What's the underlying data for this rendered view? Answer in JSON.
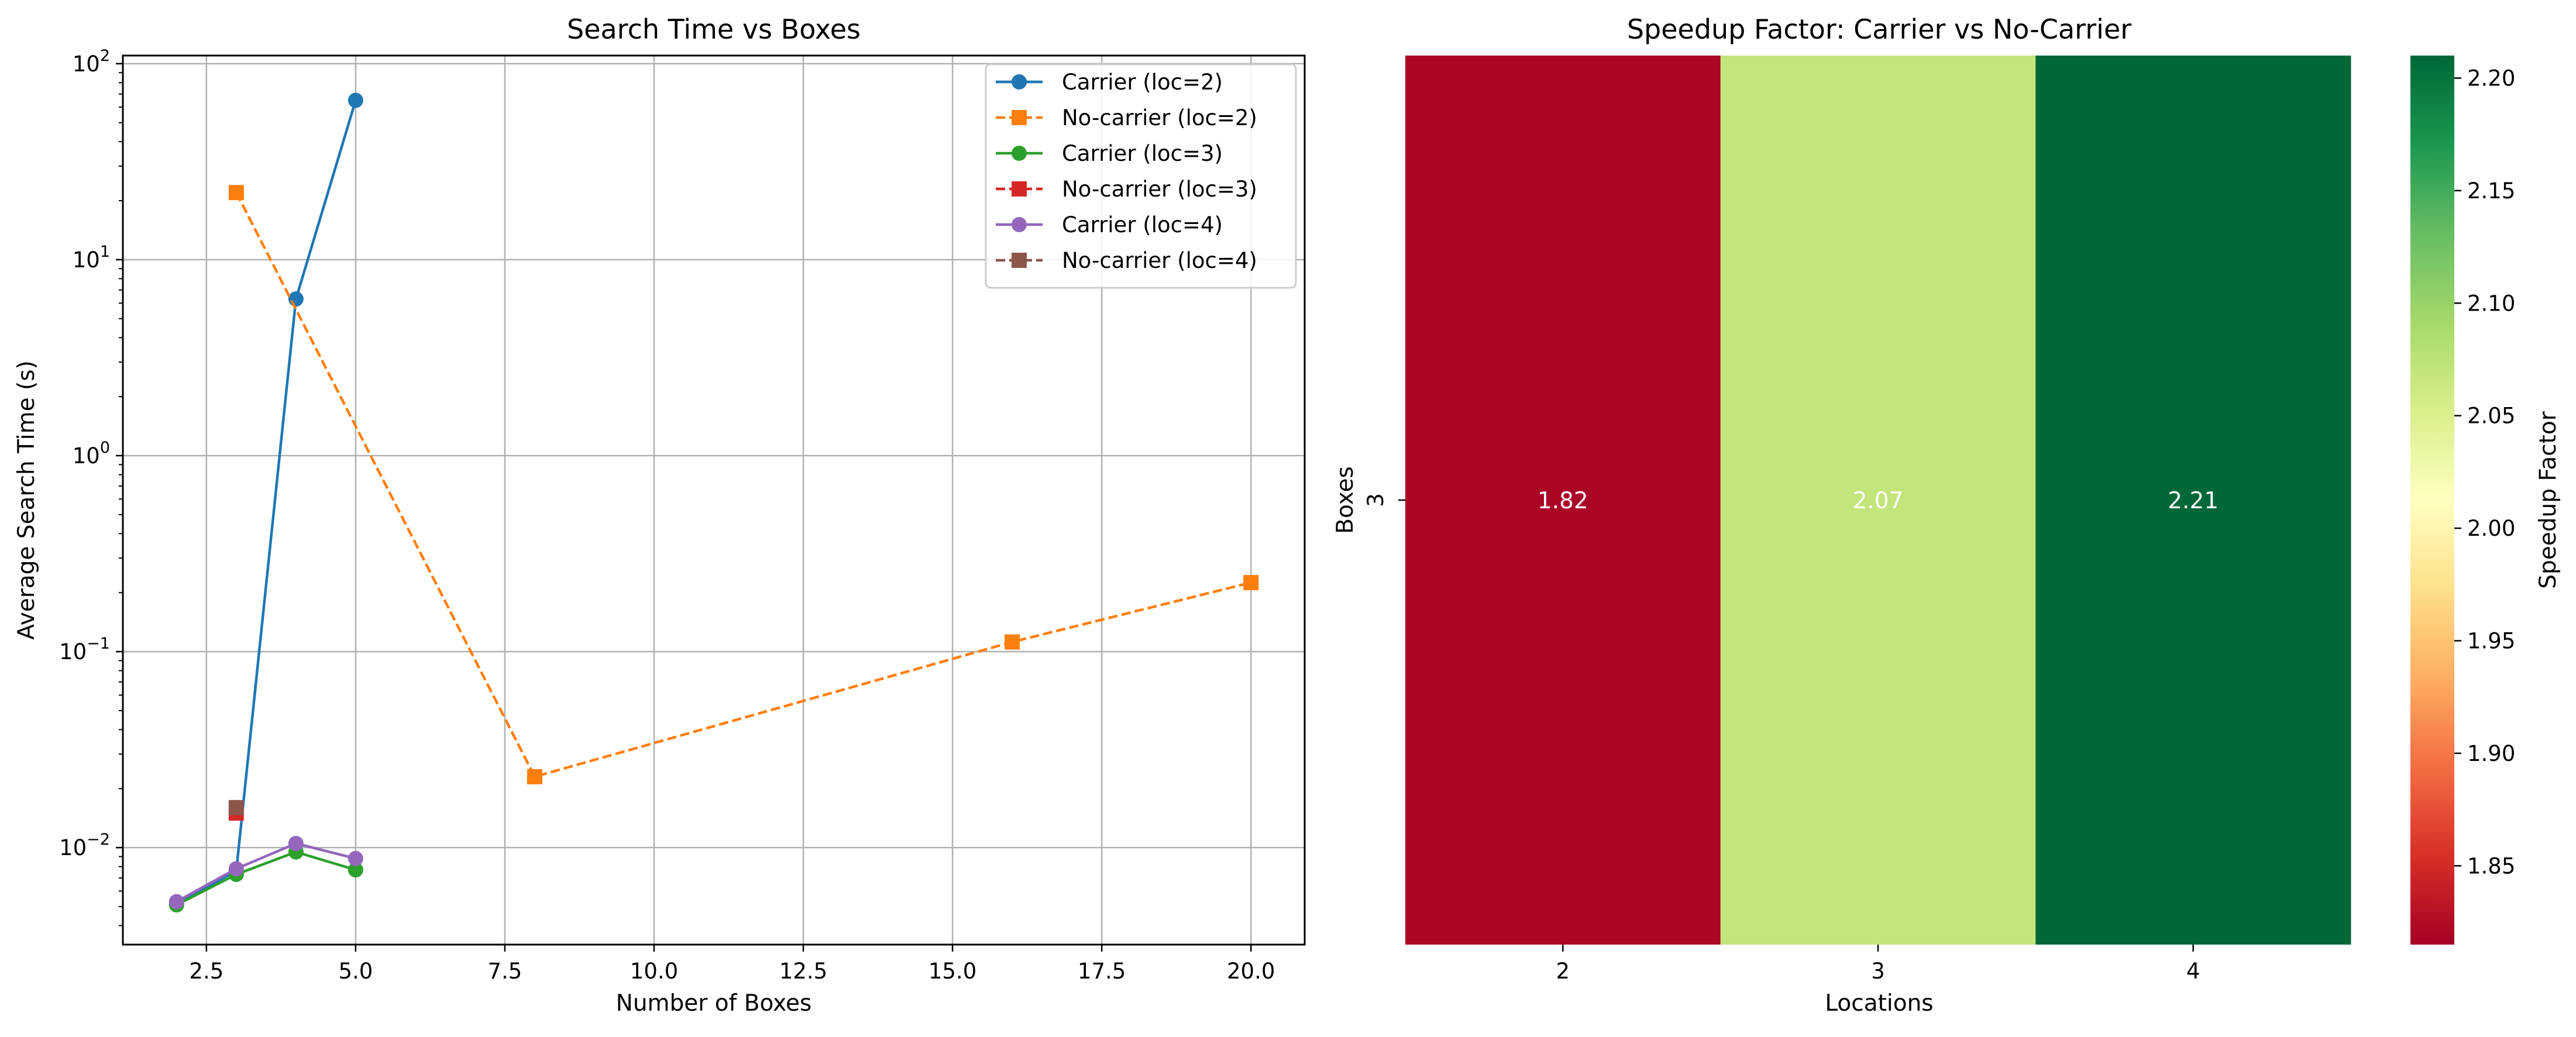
{
  "chart_data": [
    {
      "type": "line",
      "title": "Search Time vs Boxes",
      "xlabel": "Number of Boxes",
      "ylabel": "Average Search Time (s)",
      "xscale": "linear",
      "yscale": "log",
      "xlim": [
        1.1,
        20.9
      ],
      "ylim": [
        0.0032,
        110
      ],
      "xticks": [
        2.5,
        5.0,
        7.5,
        10.0,
        12.5,
        15.0,
        17.5,
        20.0
      ],
      "xtick_labels": [
        "2.5",
        "5.0",
        "7.5",
        "10.0",
        "12.5",
        "15.0",
        "17.5",
        "20.0"
      ],
      "yticks": [
        0.01,
        0.1,
        1,
        10,
        100
      ],
      "ytick_labels": [
        {
          "base": "10",
          "exp": "−2"
        },
        {
          "base": "10",
          "exp": "−1"
        },
        {
          "base": "10",
          "exp": "0"
        },
        {
          "base": "10",
          "exp": "1"
        },
        {
          "base": "10",
          "exp": "2"
        }
      ],
      "grid": true,
      "legend_position": "top-right",
      "series": [
        {
          "name": "Carrier (loc=2)",
          "color": "#1f77b4",
          "linestyle": "solid",
          "marker": "circle",
          "x": [
            2,
            3,
            4,
            5
          ],
          "y": [
            0.0052,
            0.0076,
            6.3,
            65
          ]
        },
        {
          "name": "No-carrier (loc=2)",
          "color": "#ff7f0e",
          "linestyle": "dashed",
          "marker": "square",
          "x": [
            3,
            8,
            16,
            20
          ],
          "y": [
            22,
            0.023,
            0.112,
            0.225
          ]
        },
        {
          "name": "Carrier (loc=3)",
          "color": "#2ca02c",
          "linestyle": "solid",
          "marker": "circle",
          "x": [
            2,
            3,
            4,
            5
          ],
          "y": [
            0.0051,
            0.0073,
            0.0095,
            0.0077
          ]
        },
        {
          "name": "No-carrier (loc=3)",
          "color": "#d62728",
          "linestyle": "dashed",
          "marker": "square",
          "x": [
            3
          ],
          "y": [
            0.015
          ]
        },
        {
          "name": "Carrier (loc=4)",
          "color": "#9467bd",
          "linestyle": "solid",
          "marker": "circle",
          "x": [
            2,
            3,
            4,
            5
          ],
          "y": [
            0.0053,
            0.0078,
            0.0105,
            0.0088
          ]
        },
        {
          "name": "No-carrier (loc=4)",
          "color": "#8c564b",
          "linestyle": "dashed",
          "marker": "square",
          "x": [
            3
          ],
          "y": [
            0.016
          ]
        }
      ]
    },
    {
      "type": "heatmap",
      "title": "Speedup Factor: Carrier vs No-Carrier",
      "xlabel": "Locations",
      "ylabel": "Boxes",
      "x_categories": [
        "2",
        "3",
        "4"
      ],
      "y_categories": [
        "3"
      ],
      "values": [
        [
          1.82,
          2.07,
          2.21
        ]
      ],
      "value_labels": [
        [
          "1.82",
          "2.07",
          "2.21"
        ]
      ],
      "colormap": "RdYlGn",
      "colorbar": {
        "label": "Speedup Factor",
        "range": [
          1.815,
          2.21
        ],
        "ticks": [
          1.85,
          1.9,
          1.95,
          2.0,
          2.05,
          2.1,
          2.15,
          2.2
        ],
        "tick_labels": [
          "1.85",
          "1.90",
          "1.95",
          "2.00",
          "2.05",
          "2.10",
          "2.15",
          "2.20"
        ]
      }
    }
  ]
}
